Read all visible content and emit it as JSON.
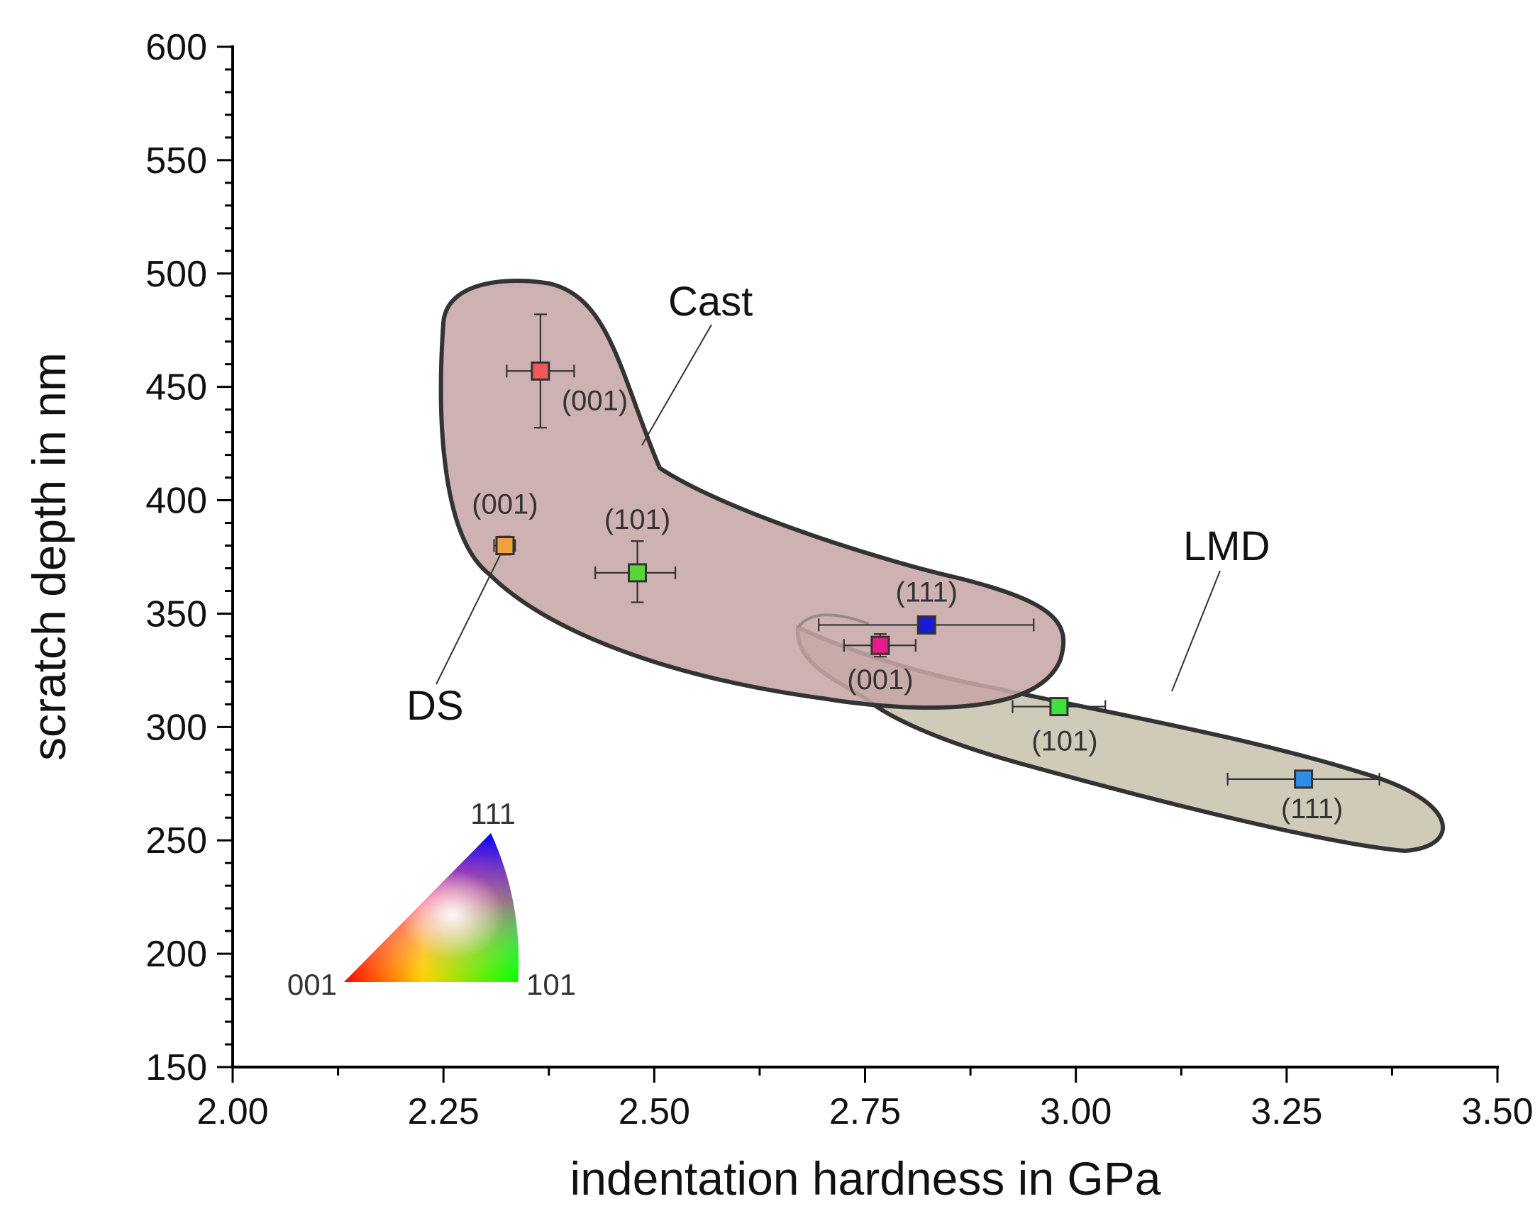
{
  "chart_data": {
    "type": "scatter",
    "title": "",
    "xlabel": "indentation hardness in GPa",
    "ylabel": "scratch depth in nm",
    "xlim": [
      2.0,
      3.5
    ],
    "ylim": [
      150,
      600
    ],
    "x_ticks": [
      "2.00",
      "2.25",
      "2.50",
      "2.75",
      "3.00",
      "3.25",
      "3.50"
    ],
    "y_ticks": [
      "150",
      "200",
      "250",
      "300",
      "350",
      "400",
      "450",
      "500",
      "550",
      "600"
    ],
    "regions": [
      {
        "name": "Cast",
        "label": "Cast",
        "fill": "#c7a6a6"
      },
      {
        "name": "LMD",
        "label": "LMD",
        "fill": "#cfcbb8"
      },
      {
        "name": "DS",
        "label": "DS"
      }
    ],
    "points": [
      {
        "group": "Cast",
        "orientation": "(001)",
        "x": 2.365,
        "y": 457,
        "xerr": [
          2.325,
          2.405
        ],
        "yerr": [
          432,
          482
        ],
        "color": "#f0585c"
      },
      {
        "group": "Cast",
        "orientation": "(101)",
        "x": 2.48,
        "y": 368,
        "xerr": [
          2.43,
          2.525
        ],
        "yerr": [
          355,
          382
        ],
        "color": "#57d63a"
      },
      {
        "group": "Cast",
        "orientation": "(111)",
        "x": 2.823,
        "y": 345,
        "xerr": [
          2.695,
          2.95
        ],
        "yerr": [
          342,
          348
        ],
        "color": "#1a1ad6"
      },
      {
        "group": "DS",
        "orientation": "(001)",
        "x": 2.323,
        "y": 380,
        "xerr": [
          2.31,
          2.335
        ],
        "yerr": [
          376,
          384
        ],
        "color": "#f0a040"
      },
      {
        "group": "LMD",
        "orientation": "(001)",
        "x": 2.768,
        "y": 336,
        "xerr": [
          2.725,
          2.81
        ],
        "yerr": [
          331,
          341
        ],
        "color": "#e61c8c"
      },
      {
        "group": "LMD",
        "orientation": "(101)",
        "x": 2.98,
        "y": 309,
        "xerr": [
          2.925,
          3.035
        ],
        "yerr": [
          306,
          312
        ],
        "color": "#3ee03a"
      },
      {
        "group": "LMD",
        "orientation": "(111)",
        "x": 3.27,
        "y": 277,
        "xerr": [
          3.18,
          3.36
        ],
        "yerr": [
          274,
          280
        ],
        "color": "#2b8fe8"
      }
    ],
    "legend_inset": {
      "type": "inverse pole figure triangle",
      "corners": [
        "001",
        "101",
        "111"
      ],
      "placement": "bottom-left"
    }
  }
}
